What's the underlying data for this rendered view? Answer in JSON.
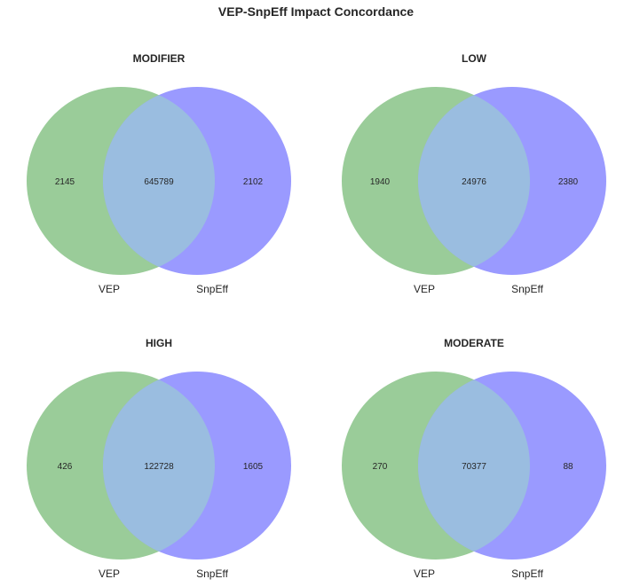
{
  "title": "VEP-SnpEff Impact Concordance",
  "colors": {
    "set_a": "#9acc99",
    "set_b": "#9a9aff",
    "overlap": "#9abde0"
  },
  "chart_data": [
    {
      "type": "venn",
      "title": "MODIFIER",
      "set_labels": [
        "VEP",
        "SnpEff"
      ],
      "values": {
        "only_a": "2145",
        "both": "645789",
        "only_b": "2102"
      }
    },
    {
      "type": "venn",
      "title": "LOW",
      "set_labels": [
        "VEP",
        "SnpEff"
      ],
      "values": {
        "only_a": "1940",
        "both": "24976",
        "only_b": "2380"
      }
    },
    {
      "type": "venn",
      "title": "HIGH",
      "set_labels": [
        "VEP",
        "SnpEff"
      ],
      "values": {
        "only_a": "426",
        "both": "122728",
        "only_b": "1605"
      }
    },
    {
      "type": "venn",
      "title": "MODERATE",
      "set_labels": [
        "VEP",
        "SnpEff"
      ],
      "values": {
        "only_a": "270",
        "both": "70377",
        "only_b": "88"
      }
    }
  ]
}
